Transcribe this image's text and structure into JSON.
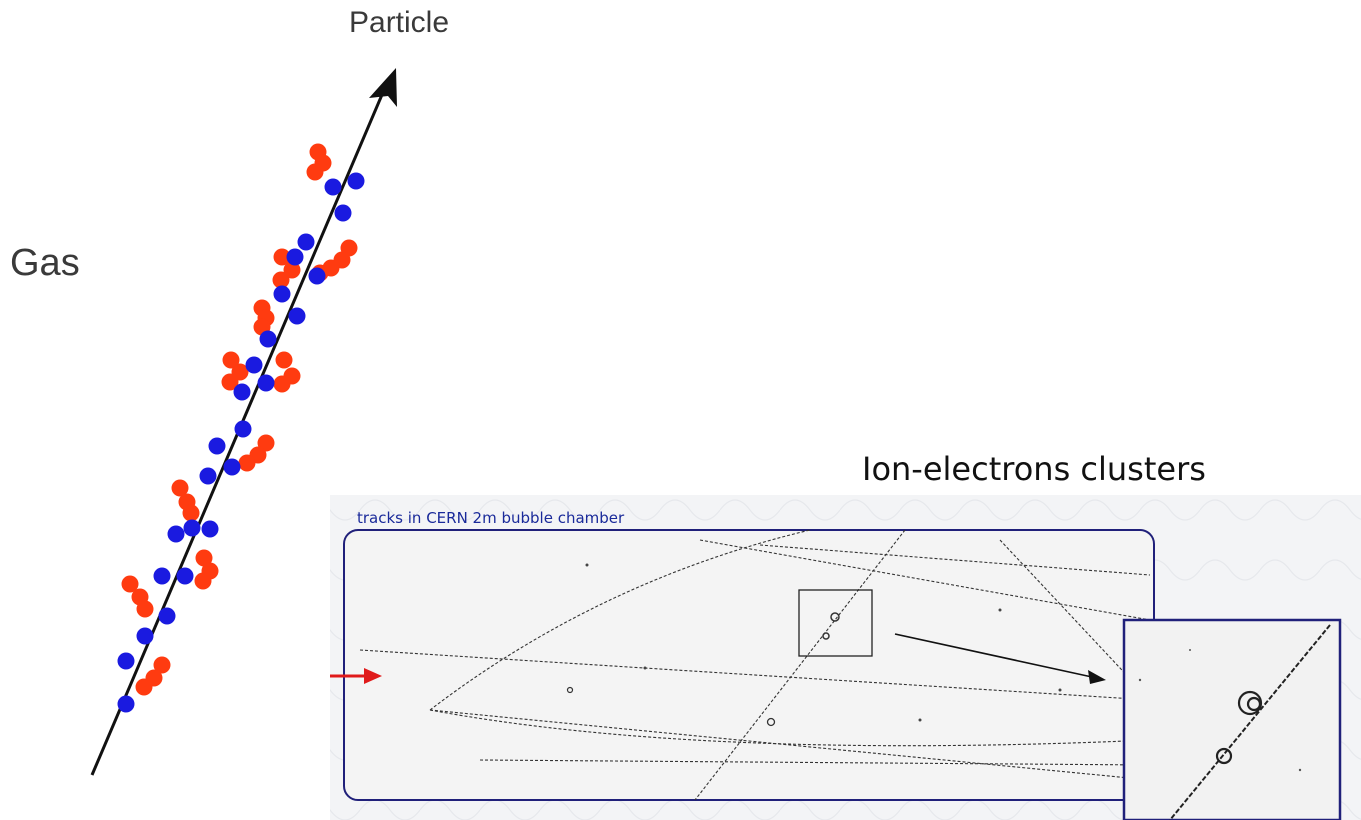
{
  "labels": {
    "particle": "Particle",
    "gas": "Gas",
    "clusters": "Ion-electrons clusters",
    "photo_caption": "tracks in CERN 2m bubble chamber"
  },
  "colors": {
    "ion": "#ff3b10",
    "electron": "#1a1ae0",
    "track": "#111111",
    "frame": "#20207a",
    "beam_arrow": "#e01a1a",
    "photo_bg": "#f1f1f1"
  }
}
